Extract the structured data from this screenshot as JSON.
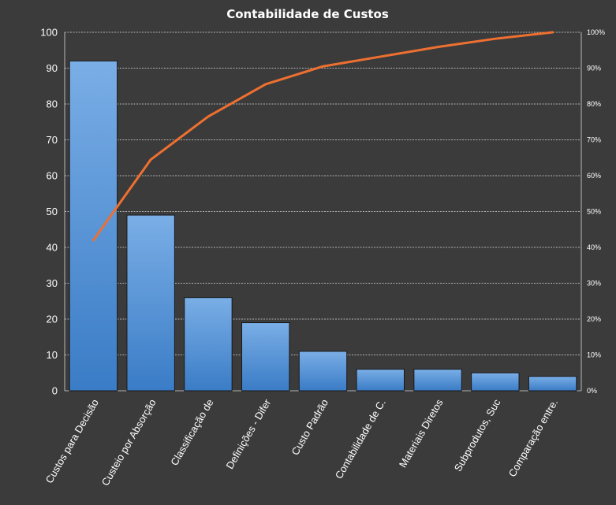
{
  "chart_data": {
    "type": "bar",
    "title": "Contabilidade  de Custos",
    "xlabel": "",
    "ylabel": "",
    "categories": [
      "Custos para Decisão",
      "Custeio por Absorção",
      "Classificação de",
      "Definições - Difer",
      "Custo Padrão",
      "Contabilidade de C.",
      "Materiais Diretos",
      "Subprodutos,  Suc",
      "Comparação entre."
    ],
    "series": [
      {
        "type": "bar",
        "values": [
          92,
          49,
          26,
          19,
          11,
          6,
          6,
          5,
          4
        ]
      },
      {
        "type": "line",
        "axis": "secondary",
        "values": [
          42,
          64.5,
          76.5,
          85.5,
          90.5,
          93.2,
          95.9,
          98.2,
          100
        ]
      }
    ],
    "ylim": [
      0,
      100
    ],
    "yticks": [
      0,
      10,
      20,
      30,
      40,
      50,
      60,
      70,
      80,
      90,
      100
    ],
    "y2lim": [
      0,
      100
    ],
    "y2ticks": [
      "0%",
      "10%",
      "20%",
      "30%",
      "40%",
      "50%",
      "60%",
      "70%",
      "80%",
      "90%",
      "100%"
    ],
    "grid": true,
    "legend": "none",
    "colors": {
      "background": "#3b3b3b",
      "bar_top": "#7aaee6",
      "bar_bottom": "#3a7cc6",
      "line": "#ee7030",
      "grid": "#d9d9d9",
      "text": "#ffffff"
    }
  }
}
